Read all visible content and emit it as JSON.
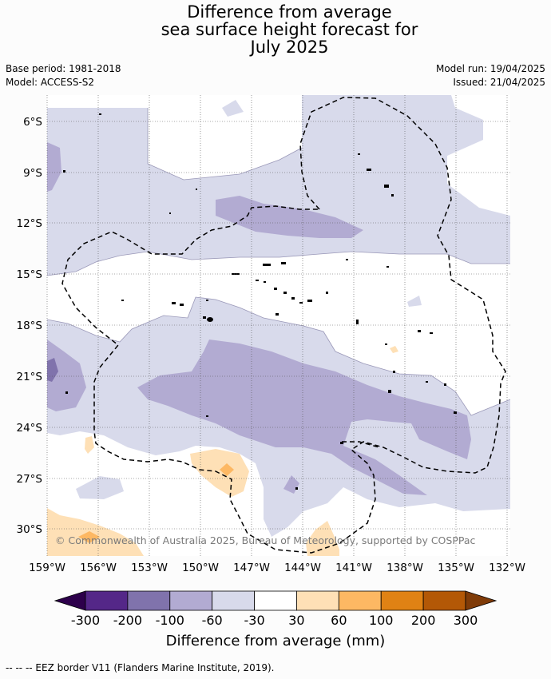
{
  "title": {
    "line1": "Difference from average",
    "line2": "sea surface height forecast for",
    "line3": "July 2025"
  },
  "meta": {
    "base_period": "Base period: 1981-2018",
    "model": "Model: ACCESS-S2",
    "model_run": "Model run: 19/04/2025",
    "issued": "Issued: 21/04/2025"
  },
  "map": {
    "lat_labels": [
      "6°S",
      "9°S",
      "12°S",
      "15°S",
      "18°S",
      "21°S",
      "24°S",
      "27°S",
      "30°S"
    ],
    "lon_labels": [
      "159°W",
      "156°W",
      "153°W",
      "150°W",
      "147°W",
      "144°W",
      "141°W",
      "138°W",
      "135°W",
      "132°W"
    ],
    "copyright": "© Commonwealth of Australia 2025, Bureau of Meteorology, supported by COSPPac"
  },
  "colorbar": {
    "ticks": [
      "-300",
      "-200",
      "-100",
      "-60",
      "-30",
      "30",
      "60",
      "100",
      "200",
      "300"
    ],
    "colors": [
      "#2d004b",
      "#542788",
      "#8073ac",
      "#b2abd2",
      "#d8daeb",
      "#ffffff",
      "#fee0b6",
      "#fdb863",
      "#e08214",
      "#b35806",
      "#7f3b08"
    ],
    "label": "Difference from average (mm)"
  },
  "legend": {
    "eez_label": "--  --  -- EEZ border V11 (Flanders Marine Institute, 2019)."
  }
}
